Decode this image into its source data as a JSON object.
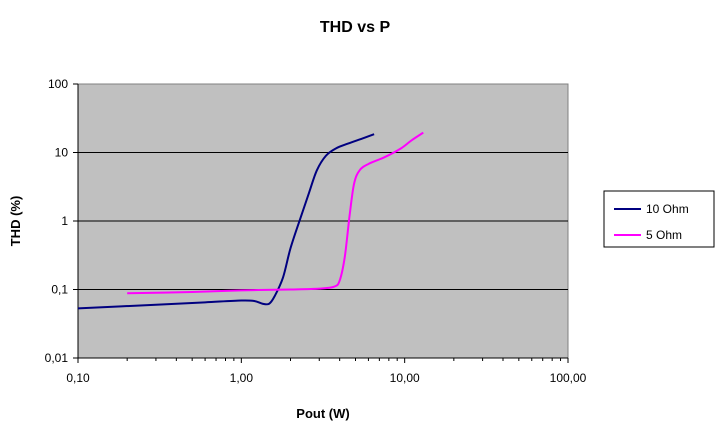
{
  "chart_data": {
    "type": "line",
    "title": "THD vs P",
    "xlabel": "Pout (W)",
    "ylabel": "THD (%)",
    "x_scale": "log",
    "y_scale": "log",
    "xlim": [
      0.1,
      100
    ],
    "ylim": [
      0.01,
      100
    ],
    "x_ticks": [
      {
        "value": 0.1,
        "label": "0,10"
      },
      {
        "value": 1,
        "label": "1,00"
      },
      {
        "value": 10,
        "label": "10,00"
      },
      {
        "value": 100,
        "label": "100,00"
      }
    ],
    "y_ticks": [
      {
        "value": 0.01,
        "label": "0,01"
      },
      {
        "value": 0.1,
        "label": "0,1"
      },
      {
        "value": 1,
        "label": "1"
      },
      {
        "value": 10,
        "label": "10"
      },
      {
        "value": 100,
        "label": "100"
      }
    ],
    "grid": true,
    "plot_background": "#c0c0c0",
    "legend_position": "right",
    "series": [
      {
        "name": "10 Ohm",
        "color": "#000080",
        "points": [
          [
            0.1,
            0.053
          ],
          [
            0.3,
            0.06
          ],
          [
            0.6,
            0.065
          ],
          [
            1.0,
            0.069
          ],
          [
            1.2,
            0.068
          ],
          [
            1.35,
            0.062
          ],
          [
            1.48,
            0.062
          ],
          [
            1.6,
            0.08
          ],
          [
            1.8,
            0.15
          ],
          [
            2.0,
            0.4
          ],
          [
            2.3,
            1.1
          ],
          [
            2.6,
            2.6
          ],
          [
            2.9,
            5.5
          ],
          [
            3.3,
            9.0
          ],
          [
            3.8,
            11.5
          ],
          [
            4.5,
            13.5
          ],
          [
            5.5,
            16.0
          ],
          [
            6.5,
            18.5
          ]
        ]
      },
      {
        "name": "5 Ohm",
        "color": "#ff00ff",
        "points": [
          [
            0.2,
            0.088
          ],
          [
            0.5,
            0.092
          ],
          [
            1.0,
            0.097
          ],
          [
            2.0,
            0.1
          ],
          [
            3.0,
            0.103
          ],
          [
            3.7,
            0.11
          ],
          [
            4.0,
            0.135
          ],
          [
            4.3,
            0.3
          ],
          [
            4.6,
            1.2
          ],
          [
            4.9,
            3.5
          ],
          [
            5.3,
            5.5
          ],
          [
            6.0,
            6.8
          ],
          [
            7.5,
            8.5
          ],
          [
            9.5,
            11.5
          ],
          [
            11.0,
            15.0
          ],
          [
            13.0,
            19.5
          ]
        ]
      }
    ]
  }
}
